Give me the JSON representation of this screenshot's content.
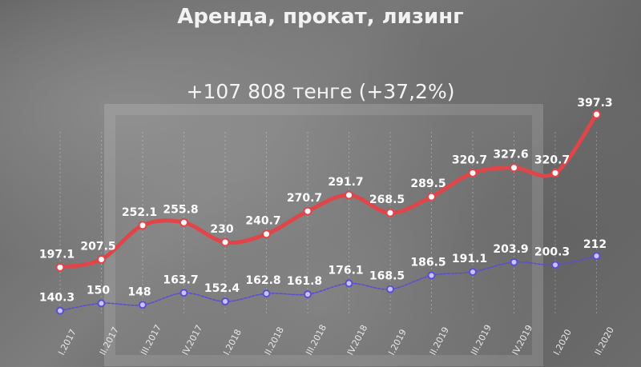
{
  "title": "Аренда, прокат, лизинг",
  "subtitle": "+107 808 тенге (+37,2%)",
  "colors": {
    "series1": "#e0454a",
    "series2": "#5a4fd0"
  },
  "chart_data": {
    "type": "line",
    "categories": [
      "I.2017",
      "II.2017",
      "III.2017",
      "IV.2017",
      "I.2018",
      "II.2018",
      "III.2018",
      "IV.2018",
      "I.2019",
      "II.2019",
      "III.2019",
      "IV.2019",
      "I.2020",
      "II.2020"
    ],
    "series": [
      {
        "values": [
          197.1,
          207.5,
          252.1,
          255.8,
          230,
          240.7,
          270.7,
          291.7,
          268.5,
          289.5,
          320.7,
          327.6,
          320.7,
          397.3
        ],
        "labels": [
          "197.1",
          "207.5",
          "252.1",
          "255.8",
          "230",
          "240.7",
          "270.7",
          "291.7",
          "268.5",
          "289.5",
          "320.7",
          "327.6",
          "320.7",
          "397.3"
        ]
      },
      {
        "values": [
          140.3,
          150,
          148,
          163.7,
          152.4,
          162.8,
          161.8,
          176.1,
          168.5,
          186.5,
          191.1,
          203.9,
          200.3,
          212
        ],
        "labels": [
          "140.3",
          "150",
          "148",
          "163.7",
          "152.4",
          "162.8",
          "161.8",
          "176.1",
          "168.5",
          "186.5",
          "191.1",
          "203.9",
          "200.3",
          "212"
        ]
      }
    ],
    "grid": true
  }
}
